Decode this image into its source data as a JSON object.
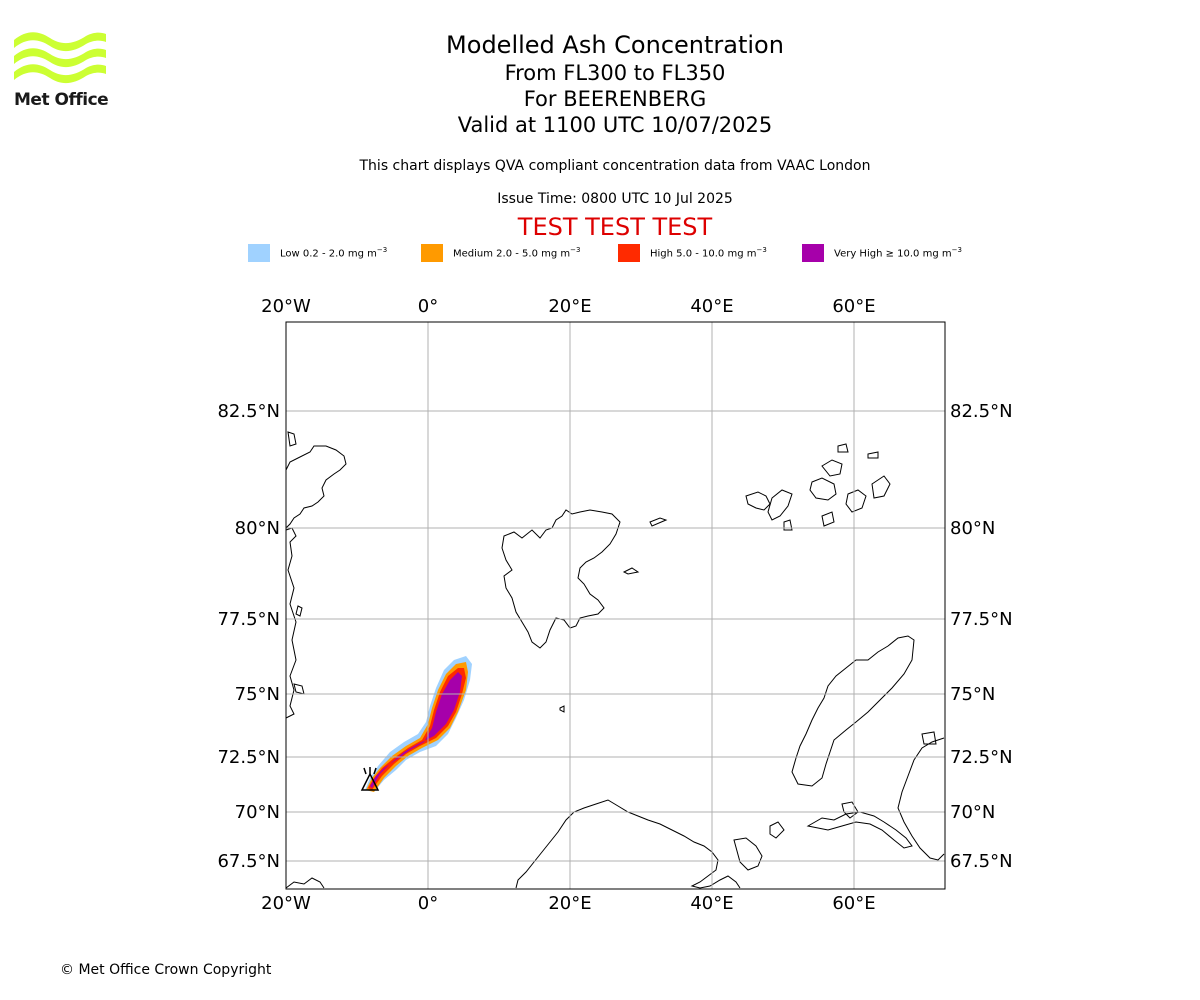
{
  "logo": {
    "text": "Met Office",
    "color": "#ccff33"
  },
  "title": {
    "line1": "Modelled Ash Concentration",
    "line2": "From FL300 to FL350",
    "line3": "For BEERENBERG",
    "line4": "Valid at 1100 UTC 10/07/2025"
  },
  "subtitle": "This chart displays QVA compliant concentration data from VAAC London",
  "issue_time": "Issue Time: 0800 UTC 10 Jul 2025",
  "test_banner": "TEST TEST TEST",
  "legend": [
    {
      "label": "Low 0.2 - 2.0 mg m",
      "color": "#a0d2ff"
    },
    {
      "label": "Medium 2.0 - 5.0 mg m",
      "color": "#ff9a00"
    },
    {
      "label": "High 5.0 - 10.0 mg m",
      "color": "#ff2a00"
    },
    {
      "label": "Very High  ≥  10.0 mg m",
      "color": "#a600aa"
    }
  ],
  "legend_unit_exponent": "−3",
  "map": {
    "lon_ticks": [
      {
        "value": -20,
        "label": "20°W"
      },
      {
        "value": 0,
        "label": "0°"
      },
      {
        "value": 20,
        "label": "20°E"
      },
      {
        "value": 40,
        "label": "40°E"
      },
      {
        "value": 60,
        "label": "60°E"
      }
    ],
    "lat_ticks": [
      {
        "value": 82.5,
        "label": "82.5°N"
      },
      {
        "value": 80,
        "label": "80°N"
      },
      {
        "value": 77.5,
        "label": "77.5°N"
      },
      {
        "value": 75,
        "label": "75°N"
      },
      {
        "value": 72.5,
        "label": "72.5°N"
      },
      {
        "value": 70,
        "label": "70°N"
      },
      {
        "value": 67.5,
        "label": "67.5°N"
      }
    ],
    "volcano": {
      "name": "BEERENBERG",
      "lon": -8.2,
      "lat": 71.1
    }
  },
  "copyright": "© Met Office Crown Copyright"
}
